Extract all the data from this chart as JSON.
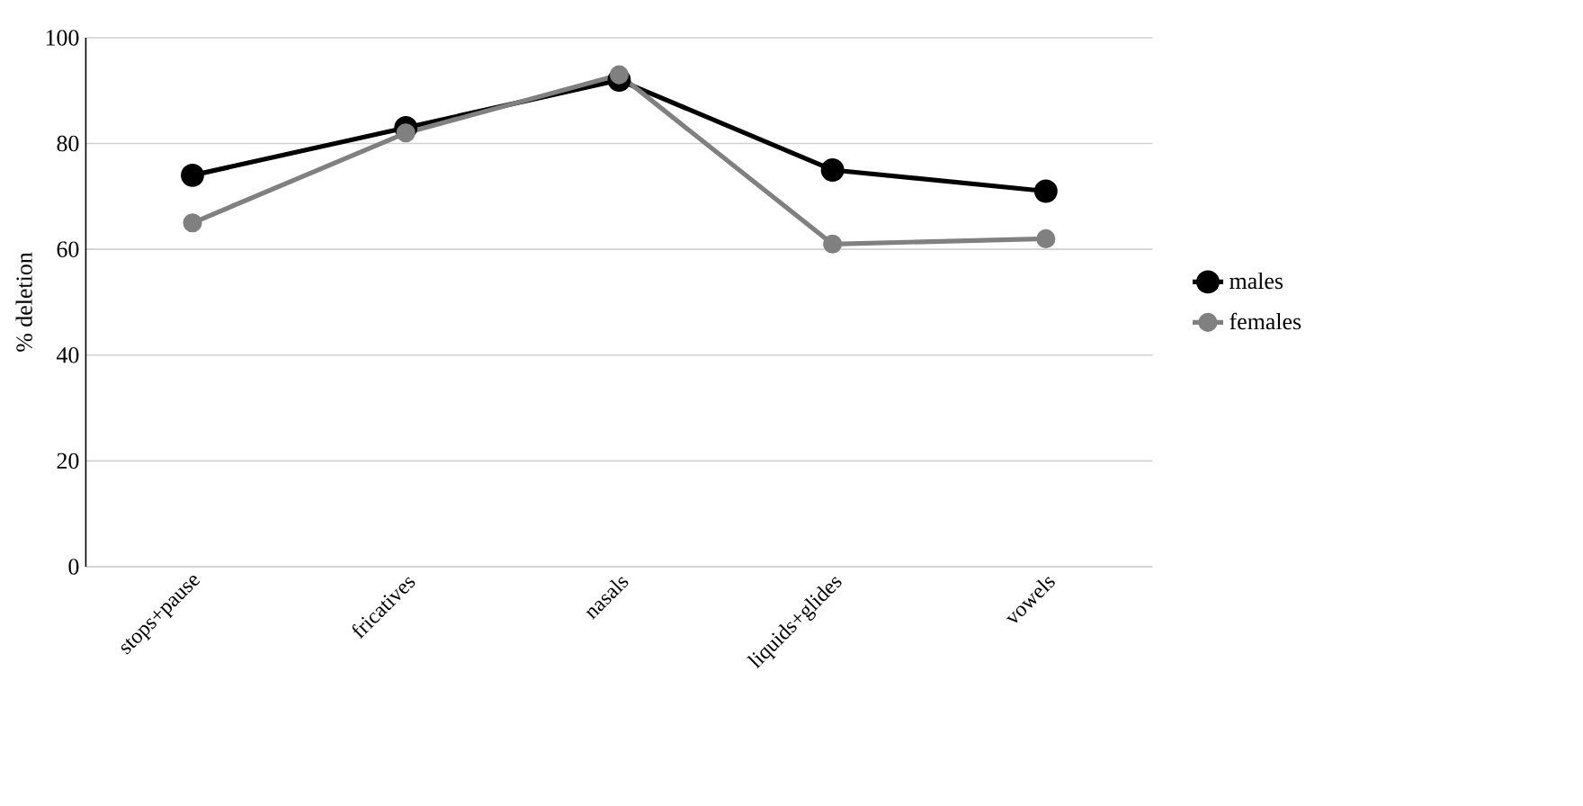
{
  "chart_data": {
    "type": "line",
    "ylabel": "% deletion",
    "categories": [
      "stops+pause",
      "fricatives",
      "nasals",
      "liquids+glides",
      "vowels"
    ],
    "series": [
      {
        "name": "males",
        "color": "#000000",
        "values": [
          74,
          83,
          92,
          75,
          71
        ]
      },
      {
        "name": "females",
        "color": "#808080",
        "values": [
          65,
          82,
          93,
          61,
          62
        ]
      }
    ],
    "ylim": [
      0,
      100
    ],
    "yticks": [
      0,
      20,
      40,
      60,
      80,
      100
    ],
    "grid": "y",
    "legend": "right",
    "marker": "circle",
    "line_style": "solid"
  }
}
